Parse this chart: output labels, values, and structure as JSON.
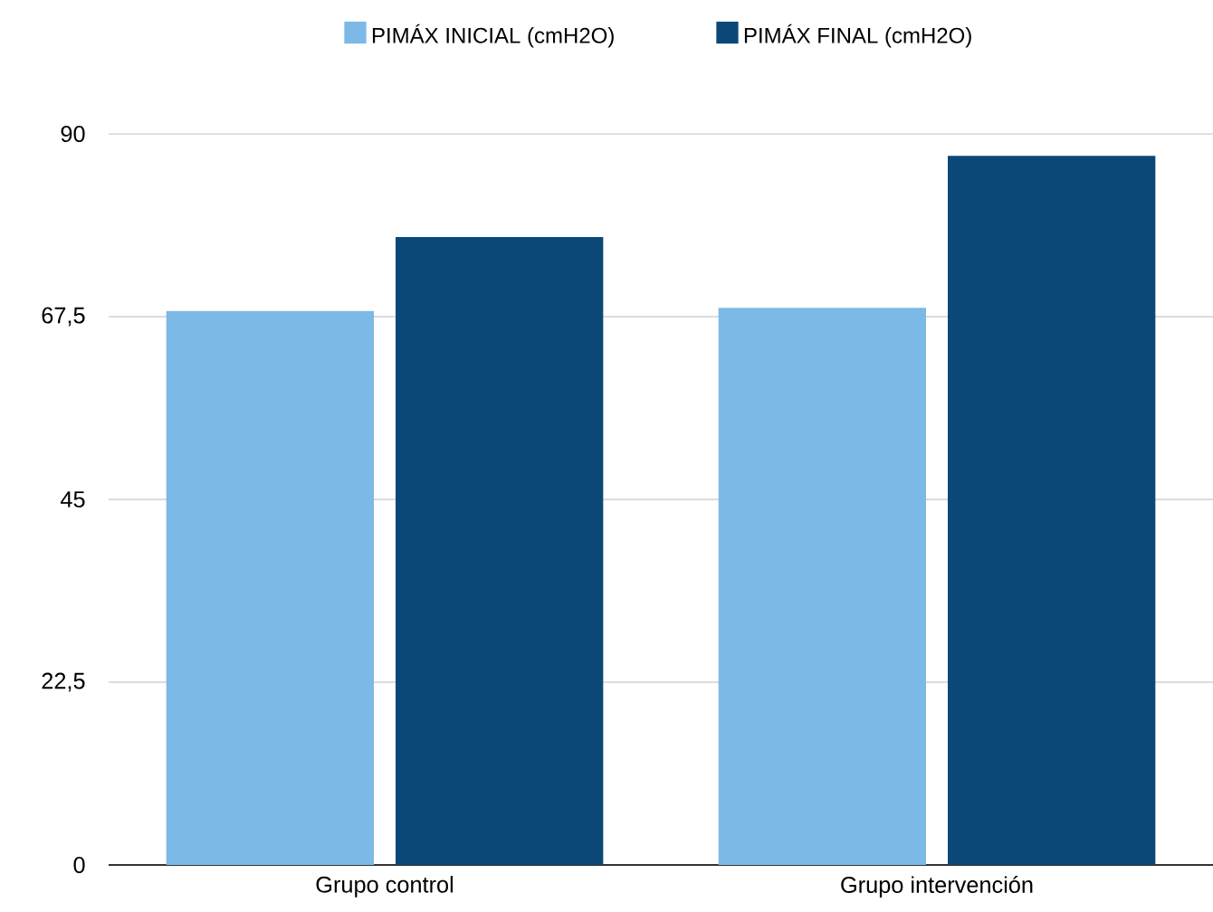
{
  "chart_data": {
    "type": "bar",
    "categories": [
      "Grupo control",
      "Grupo intervención"
    ],
    "series": [
      {
        "name": "PIMÁX INICIAL (cmH2O)",
        "color": "#7cb9e6",
        "values": [
          68.2,
          68.6
        ]
      },
      {
        "name": "PIMÁX FINAL (cmH2O)",
        "color": "#0b4877",
        "values": [
          77.3,
          87.3
        ]
      }
    ],
    "ylim": [
      0,
      90
    ],
    "yticks": [
      0,
      {
        "value": 22.5,
        "label": "22,5"
      },
      45,
      {
        "value": 67.5,
        "label": "67,5"
      },
      90
    ],
    "grid": "y",
    "legend": "top"
  }
}
